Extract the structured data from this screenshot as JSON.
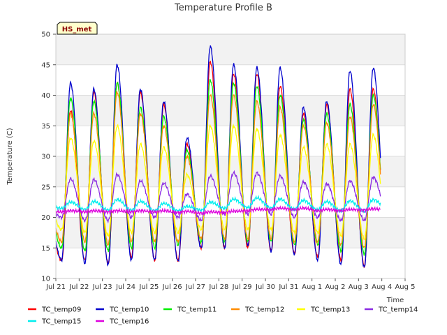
{
  "chart_data": {
    "type": "line",
    "title": "Temperature Profile B",
    "xlabel": "Time",
    "ylabel": "Temperature (C)",
    "badge": "HS_met",
    "ylim": [
      10,
      50
    ],
    "xlim": [
      "Jul 21",
      "Aug 5"
    ],
    "x_ticks": [
      "Jul 21",
      "Jul 22",
      "Jul 23",
      "Jul 24",
      "Jul 25",
      "Jul 26",
      "Jul 27",
      "Jul 28",
      "Jul 29",
      "Jul 30",
      "Jul 31",
      "Aug 1",
      "Aug 2",
      "Aug 3",
      "Aug 4",
      "Aug 5"
    ],
    "y_ticks": [
      10,
      15,
      20,
      25,
      30,
      35,
      40,
      45,
      50
    ],
    "grid": true,
    "legend_position": "bottom",
    "x_daily_dates": [
      "Jul 21",
      "Jul 22",
      "Jul 23",
      "Jul 24",
      "Jul 25",
      "Jul 26",
      "Jul 27",
      "Jul 28",
      "Jul 29",
      "Jul 30",
      "Jul 31",
      "Aug 1",
      "Aug 2",
      "Aug 3",
      "Aug 4"
    ],
    "series": [
      {
        "name": "TC_temp09",
        "color": "#ff0000",
        "daily_max": [
          37.5,
          40.5,
          42,
          40.5,
          38.5,
          32,
          45.5,
          43.5,
          43.5,
          41.5,
          37,
          38.5,
          41,
          41
        ],
        "daily_min": [
          13,
          13,
          12.5,
          13.5,
          13,
          13,
          15,
          15,
          15,
          14.5,
          14,
          13.5,
          13,
          12,
          14
        ]
      },
      {
        "name": "TC_temp10",
        "color": "#0000cc",
        "daily_max": [
          42,
          41,
          45,
          41,
          39,
          33,
          48,
          45,
          44.5,
          44.5,
          38,
          39,
          44,
          44.5
        ],
        "daily_min": [
          13,
          12.5,
          12.3,
          13,
          13,
          12.8,
          15,
          15,
          15.5,
          14.5,
          14,
          13,
          12.3,
          11.8,
          15
        ]
      },
      {
        "name": "TC_temp11",
        "color": "#00ee00",
        "daily_max": [
          39.5,
          39,
          42,
          38,
          36.5,
          31,
          42.5,
          42,
          41.5,
          40,
          36,
          37,
          38.5,
          40
        ],
        "daily_min": [
          15,
          14.5,
          14.5,
          15,
          15,
          15.5,
          16,
          16,
          16,
          16,
          15.5,
          15.5,
          14.5,
          14,
          15.5
        ]
      },
      {
        "name": "TC_temp12",
        "color": "#ff8c00",
        "daily_max": [
          37,
          37,
          40.5,
          37,
          35,
          30,
          40,
          40,
          39,
          38,
          35,
          35.5,
          36.5,
          38.5
        ],
        "daily_min": [
          16,
          16,
          15.5,
          16,
          16,
          16,
          16.5,
          16.5,
          16.5,
          16.5,
          16,
          16,
          15.5,
          15,
          16
        ]
      },
      {
        "name": "TC_temp13",
        "color": "#ffff00",
        "daily_max": [
          33,
          32.5,
          35,
          32,
          31.5,
          27,
          35,
          35,
          34.5,
          33.5,
          31.5,
          32,
          32,
          33.5
        ],
        "daily_min": [
          18,
          17.5,
          17,
          17.5,
          17.5,
          17.5,
          18,
          18,
          18,
          18,
          17.5,
          17.5,
          17,
          16.5,
          17.5
        ]
      },
      {
        "name": "TC_temp14",
        "color": "#8a2be2",
        "daily_max": [
          26.3,
          26.2,
          27,
          26,
          25.6,
          23.8,
          26.8,
          27.3,
          27.3,
          26.8,
          25.8,
          25.5,
          26,
          26.6
        ],
        "daily_min": [
          20,
          19.5,
          19.5,
          20,
          20,
          20,
          19.5,
          20.5,
          20.5,
          20.5,
          20,
          20,
          19.5,
          19.5,
          20.5
        ]
      },
      {
        "name": "TC_temp15",
        "color": "#00eeee",
        "daily_max": [
          22.5,
          22.6,
          22.9,
          22.6,
          22.3,
          21.8,
          22.5,
          23,
          23.2,
          23,
          22.8,
          22.6,
          22.7,
          22.9
        ],
        "daily_min": [
          21.5,
          21.3,
          21.2,
          21.2,
          21.1,
          21.1,
          21.2,
          21.5,
          21.6,
          21.5,
          21.3,
          21.2,
          21.1,
          21,
          21.5
        ]
      },
      {
        "name": "TC_temp16",
        "color": "#dd00dd",
        "daily_max": [
          21.1,
          21.1,
          21.1,
          21.1,
          21.1,
          21.0,
          20.9,
          21.0,
          21.3,
          21.5,
          21.5,
          21.3,
          21.3,
          21.4
        ],
        "daily_min": [
          20.9,
          20.9,
          20.9,
          20.9,
          20.9,
          20.8,
          20.7,
          20.8,
          21.1,
          21.3,
          21.3,
          21.1,
          21.1,
          21.2,
          21.2
        ]
      }
    ]
  }
}
